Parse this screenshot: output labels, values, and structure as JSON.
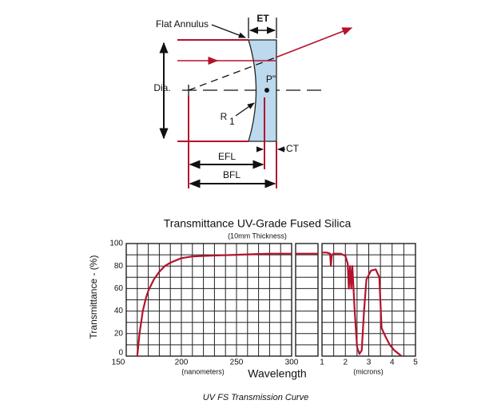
{
  "diagram": {
    "flat_annulus": "Flat Annulus",
    "et": "ET",
    "dia": "Dia.",
    "p_point": "P\"",
    "r1": {
      "text": "R",
      "subscript": "1"
    },
    "ct": "CT",
    "efl": "EFL",
    "bfl": "BFL"
  },
  "chart_data": [
    {
      "type": "line",
      "title": "Transmittance UV-Grade Fused Silica",
      "subtitle": "(10mm Thickness)",
      "ylabel": "Transmittance - (%)",
      "xlabel": "Wavelength",
      "xunit": "(nanometers)",
      "x": [
        160,
        162,
        165,
        168,
        170,
        175,
        180,
        185,
        190,
        200,
        210,
        220,
        235,
        250,
        265,
        280,
        300
      ],
      "series": [
        {
          "name": "UV-Grade Fused Silica",
          "color": "#b5122b",
          "values": [
            0,
            20,
            40,
            52,
            58,
            68,
            75,
            80,
            83,
            87,
            88.5,
            89,
            89.5,
            90,
            90.5,
            91,
            91
          ]
        }
      ],
      "xlim": [
        150,
        300
      ],
      "ylim": [
        0,
        100
      ],
      "xticks": [
        150,
        200,
        250,
        300
      ],
      "yticks": [
        0,
        20,
        40,
        60,
        80,
        100
      ],
      "xminor": [
        160,
        170,
        180,
        190,
        210,
        220,
        230,
        240,
        260,
        270,
        280,
        290
      ],
      "yminor": [
        10,
        30,
        50,
        70,
        90
      ],
      "grid": true
    },
    {
      "type": "line",
      "categories": [
        null,
        null,
        null
      ],
      "series": [
        {
          "name": "UV-Grade Fused Silica",
          "color": "#b5122b",
          "values": [
            91,
            91,
            91
          ]
        }
      ],
      "ylim": [
        0,
        100
      ],
      "yticks": [
        0,
        20,
        40,
        60,
        80,
        100
      ],
      "yminor": [
        10,
        30,
        50,
        70,
        90
      ],
      "grid": true
    },
    {
      "type": "line",
      "xunit": "(microns)",
      "x": [
        1.0,
        1.2,
        1.35,
        1.38,
        1.42,
        1.5,
        1.8,
        2.0,
        2.1,
        2.15,
        2.2,
        2.25,
        2.3,
        2.4,
        2.5,
        2.6,
        2.7,
        2.8,
        2.9,
        3.1,
        3.3,
        3.45,
        3.55,
        3.7,
        3.9,
        4.1,
        4.4
      ],
      "series": [
        {
          "name": "UV-Grade Fused Silica",
          "color": "#b5122b",
          "values": [
            92,
            92,
            91,
            80,
            90,
            91,
            91,
            89,
            82,
            60,
            80,
            60,
            80,
            40,
            8,
            2,
            5,
            40,
            68,
            76,
            77,
            70,
            25,
            18,
            10,
            5,
            0
          ]
        }
      ],
      "xlim": [
        1,
        5
      ],
      "ylim": [
        0,
        100
      ],
      "xticks": [
        1,
        2,
        3,
        4,
        5
      ],
      "yticks": [
        0,
        20,
        40,
        60,
        80,
        100
      ],
      "xminor": [
        1.5,
        2.5,
        3.5,
        4.5
      ],
      "yminor": [
        10,
        30,
        50,
        70,
        90
      ],
      "grid": true
    }
  ],
  "caption": "UV FS Transmission Curve"
}
